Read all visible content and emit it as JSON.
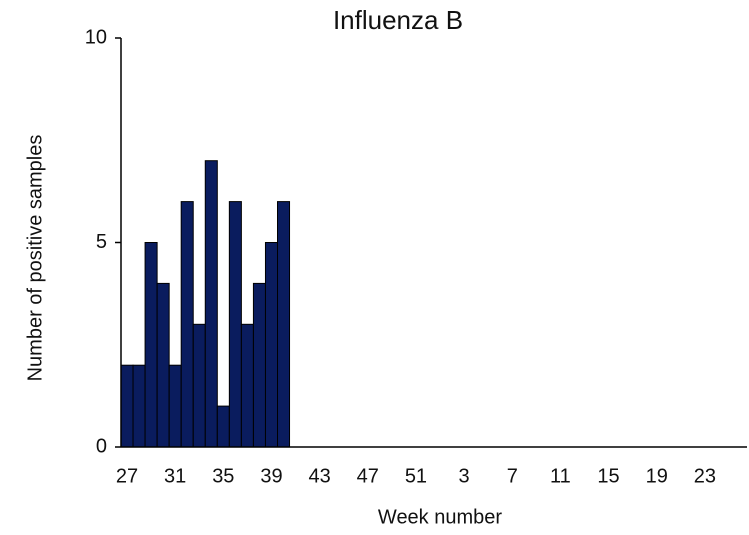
{
  "chart_data": {
    "type": "bar",
    "title": "Influenza B",
    "x_label": "Week number",
    "y_label": "Number of positive samples",
    "categories": [
      "27",
      null,
      null,
      null,
      "31",
      null,
      null,
      null,
      "35",
      null,
      null,
      null,
      "39",
      null,
      null,
      null,
      "43",
      null,
      null,
      null,
      "47",
      null,
      null,
      null,
      "51",
      null,
      null,
      null,
      "3",
      null,
      null,
      null,
      "7",
      null,
      null,
      null,
      "11",
      null,
      null,
      null,
      "15",
      null,
      null,
      null,
      "19",
      null,
      null,
      null,
      "23",
      null,
      null,
      null
    ],
    "values": [
      2,
      2,
      5,
      4,
      2,
      6,
      3,
      7,
      1,
      6,
      3,
      4,
      5,
      6,
      null,
      null,
      null,
      null,
      null,
      null,
      null,
      null,
      null,
      null,
      null,
      null,
      null,
      null,
      null,
      null,
      null,
      null,
      null,
      null,
      null,
      null,
      null,
      null,
      null,
      null,
      null,
      null,
      null,
      null,
      null,
      null,
      null,
      null,
      null,
      null,
      null,
      null
    ],
    "color": "#0a1c5e",
    "ylim": [
      0,
      10
    ],
    "yticks": [
      0,
      5,
      10
    ]
  }
}
